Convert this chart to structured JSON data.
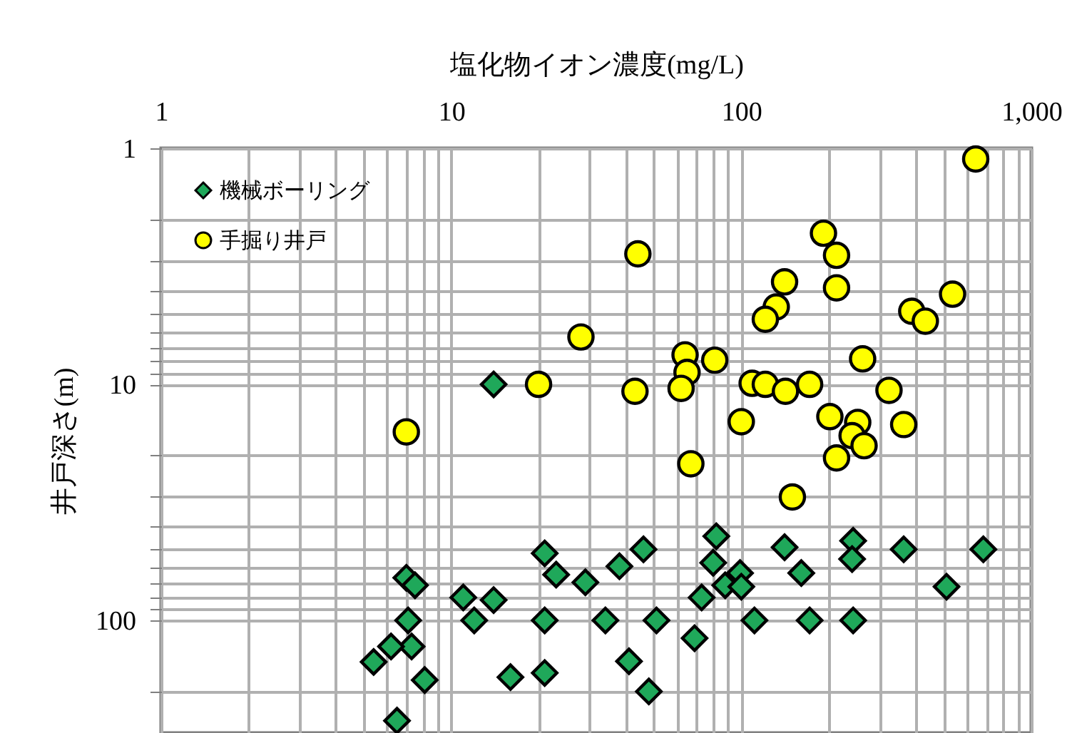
{
  "chart_data": {
    "type": "scatter",
    "xlabel": "塩化物イオン濃度(mg/L)",
    "ylabel": "井戸深さ(m)",
    "log": "xy",
    "grid": true,
    "legend": "top left",
    "xlim": [
      1,
      1000
    ],
    "ylim": [
      300,
      1
    ],
    "xticks": [
      1,
      {
        "value": 2,
        "label": null
      },
      {
        "value": 3,
        "label": null
      },
      {
        "value": 4,
        "label": null
      },
      {
        "value": 5,
        "label": null
      },
      {
        "value": 6,
        "label": null
      },
      {
        "value": 7,
        "label": null
      },
      {
        "value": 8,
        "label": null
      },
      {
        "value": 9,
        "label": null
      },
      10,
      {
        "value": 20,
        "label": null
      },
      {
        "value": 30,
        "label": null
      },
      {
        "value": 40,
        "label": null
      },
      {
        "value": 50,
        "label": null
      },
      {
        "value": 60,
        "label": null
      },
      {
        "value": 70,
        "label": null
      },
      {
        "value": 80,
        "label": null
      },
      {
        "value": 90,
        "label": null
      },
      100,
      {
        "value": 200,
        "label": null
      },
      {
        "value": 300,
        "label": null
      },
      {
        "value": 400,
        "label": null
      },
      {
        "value": 500,
        "label": null
      },
      {
        "value": 600,
        "label": null
      },
      {
        "value": 700,
        "label": null
      },
      {
        "value": 800,
        "label": null
      },
      {
        "value": 900,
        "label": null
      },
      {
        "value": 1000,
        "label": "1,000"
      }
    ],
    "yticks": [
      1,
      {
        "value": 2,
        "label": null
      },
      {
        "value": 3,
        "label": null
      },
      {
        "value": 4,
        "label": null
      },
      {
        "value": 5,
        "label": null
      },
      {
        "value": 6,
        "label": null
      },
      {
        "value": 7,
        "label": null
      },
      {
        "value": 8,
        "label": null
      },
      {
        "value": 9,
        "label": null
      },
      10,
      {
        "value": 20,
        "label": null
      },
      {
        "value": 30,
        "label": null
      },
      {
        "value": 40,
        "label": null
      },
      {
        "value": 50,
        "label": null
      },
      {
        "value": 60,
        "label": null
      },
      {
        "value": 70,
        "label": null
      },
      {
        "value": 80,
        "label": null
      },
      {
        "value": 90,
        "label": null
      },
      100,
      {
        "value": 200,
        "label": null
      }
    ],
    "series": [
      {
        "name": "機械ボーリング",
        "color": "#1fa85a",
        "marker": "diamond",
        "x": [
          14,
          21,
          23,
          29,
          7.0,
          7.5,
          11,
          14,
          12,
          21,
          7.1,
          7.3,
          6.2,
          5.4,
          8.1,
          16,
          21,
          6.5,
          46,
          38,
          82,
          80,
          99,
          88,
          100,
          73,
          141,
          161,
          243,
          241,
          363,
          683,
          510,
          34,
          51,
          111,
          172,
          243,
          69,
          41,
          48
        ],
        "values": [
          10,
          52,
          64,
          69,
          66,
          71,
          80,
          82,
          100,
          100,
          100,
          129,
          129,
          150,
          179,
          174,
          167,
          266,
          50,
          59,
          44,
          57,
          63,
          71,
          72,
          80,
          49,
          63,
          46,
          55,
          50,
          50,
          72,
          100,
          100,
          100,
          100,
          100,
          119,
          149,
          200
        ]
      },
      {
        "name": "手掘り井戸",
        "color": "#ffff00",
        "marker": "circle",
        "x": [
          643,
          44,
          192,
          213,
          213,
          141,
          132,
          121,
          387,
          431,
          535,
          262,
          64,
          65,
          81,
          62,
          43,
          109,
          121,
          142,
          172,
          323,
          28,
          20,
          7.0,
          100,
          67,
          150,
          202,
          252,
          241,
          265,
          213,
          363
        ],
        "values": [
          1.11,
          2.8,
          2.29,
          2.84,
          3.9,
          3.68,
          4.7,
          5.3,
          4.9,
          5.4,
          4.15,
          7.8,
          7.5,
          8.9,
          7.9,
          10.4,
          10.7,
          9.9,
          10,
          10.7,
          10,
          10.6,
          6.3,
          10,
          15.9,
          14.4,
          21.7,
          30,
          13.7,
          14.5,
          16.5,
          18.2,
          20.5,
          14.8
        ]
      }
    ]
  }
}
